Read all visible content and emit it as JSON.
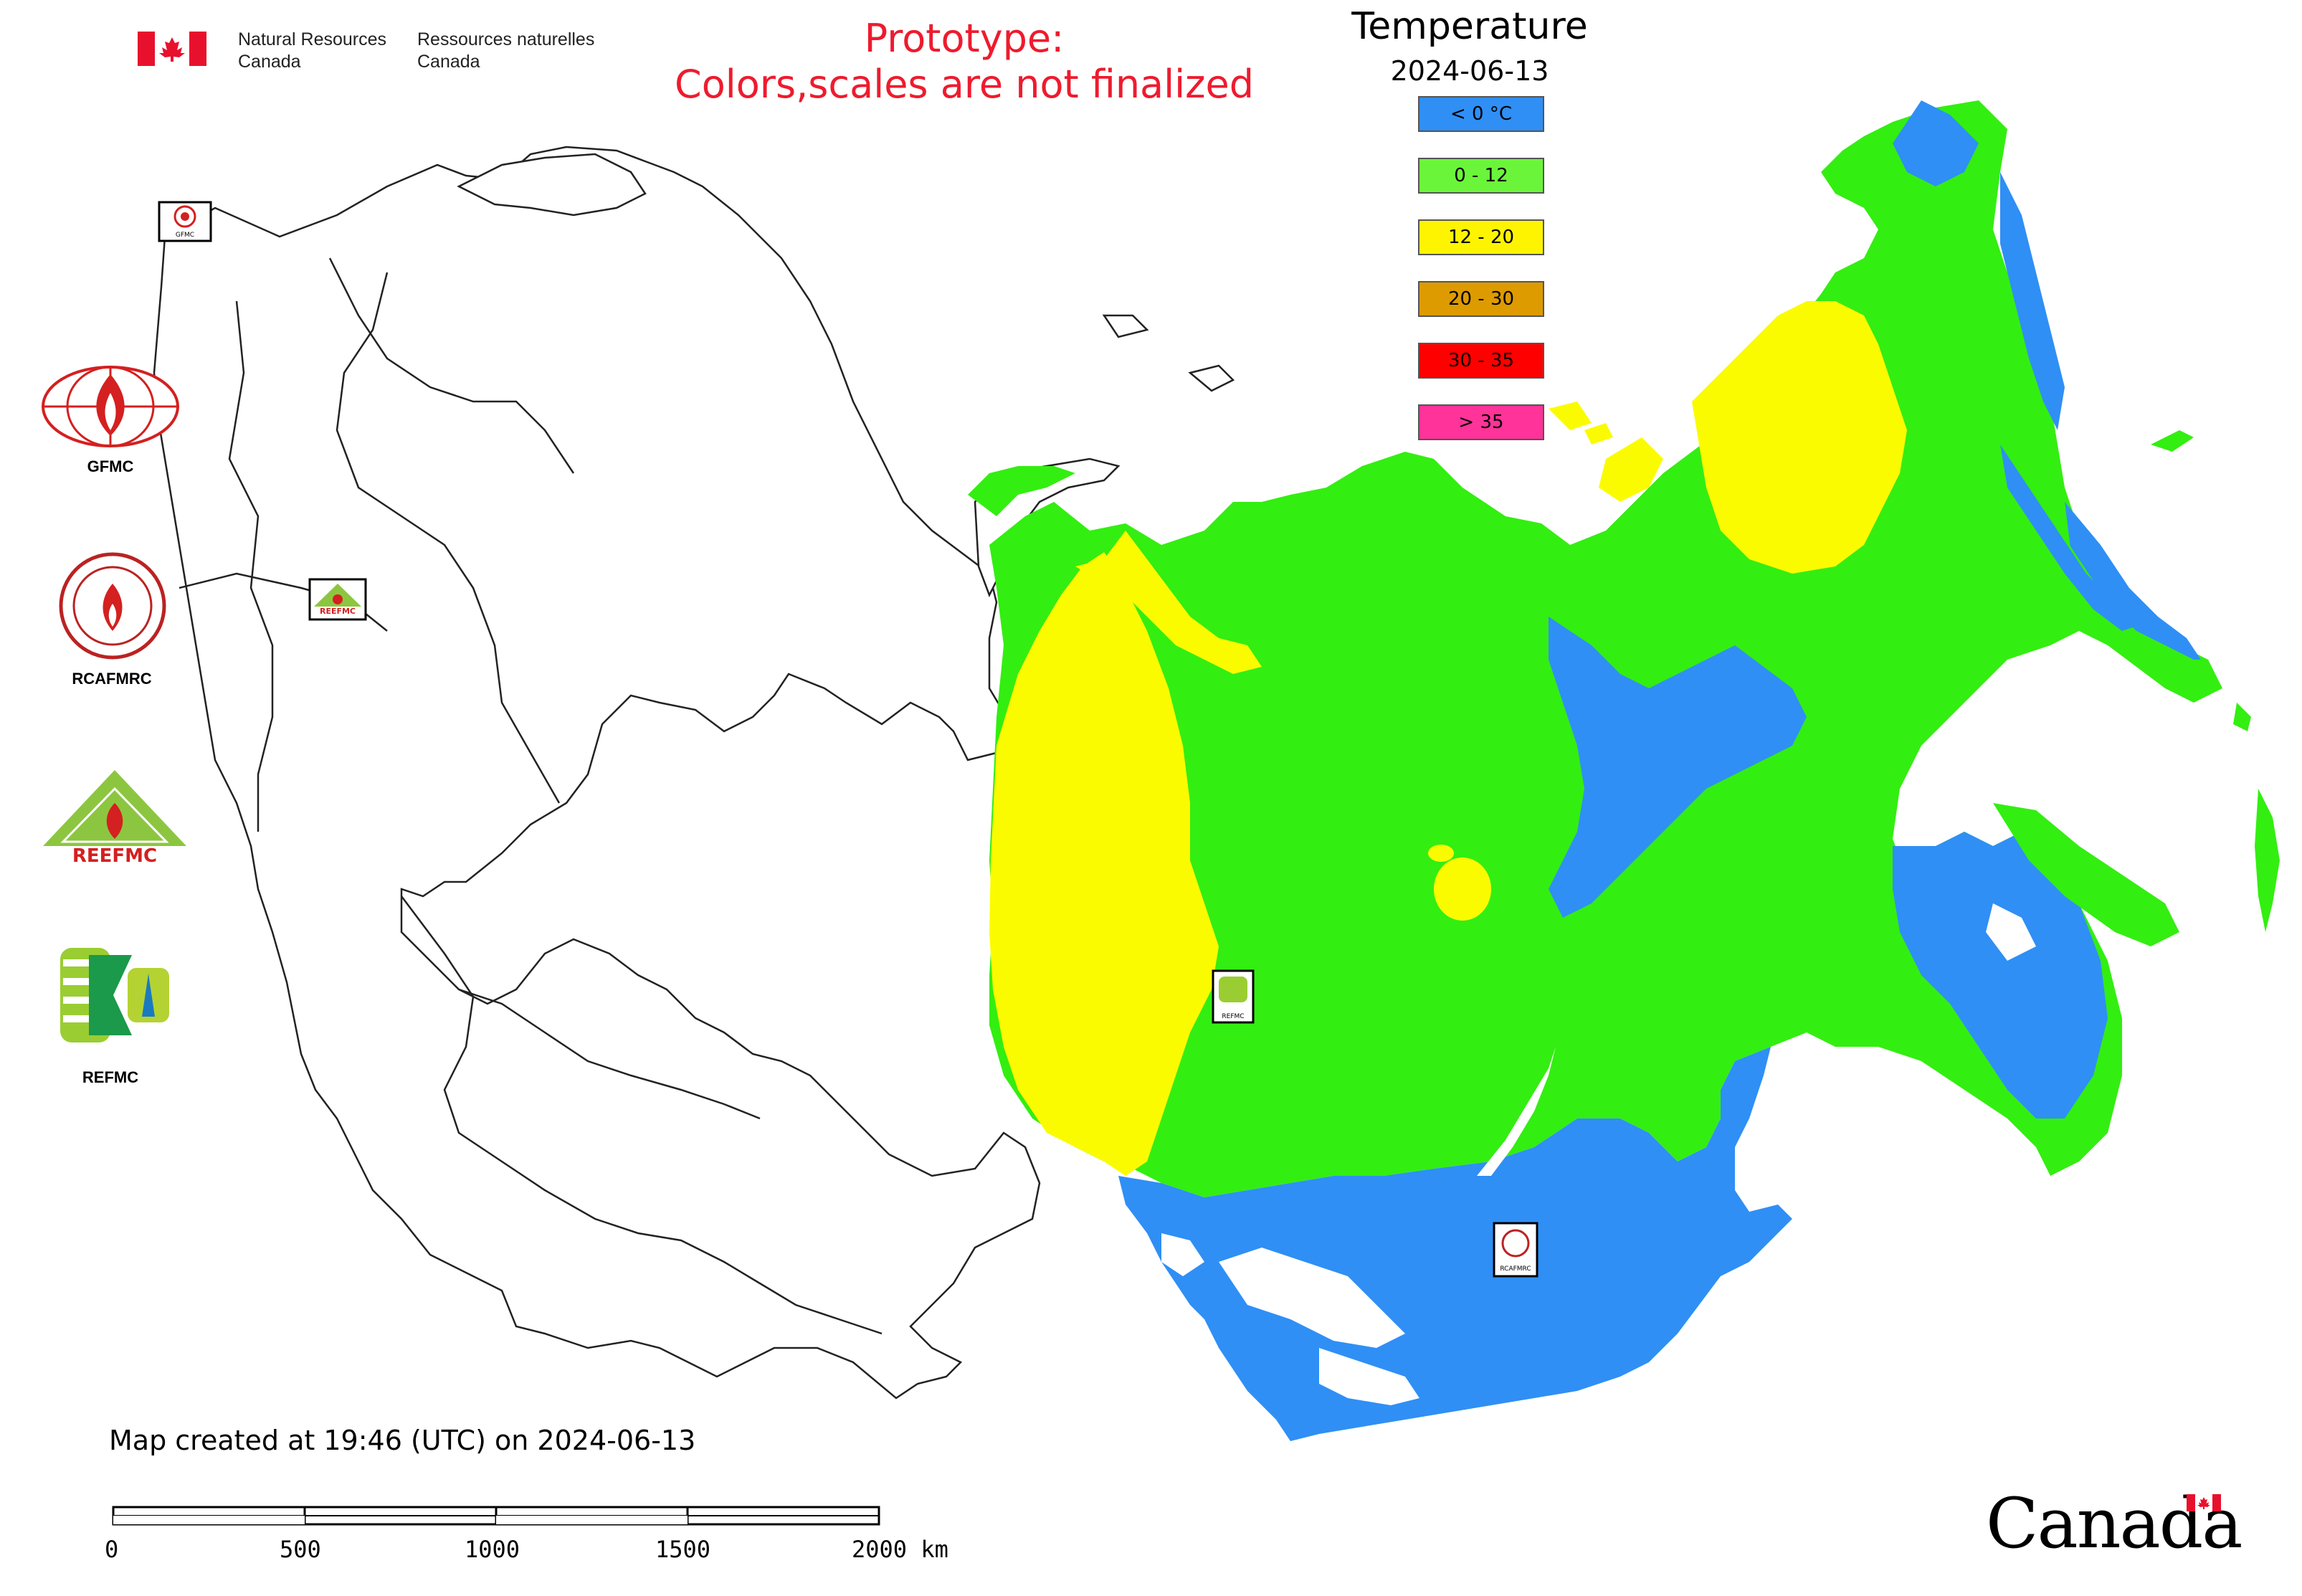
{
  "header": {
    "department_en_line1": "Natural Resources",
    "department_en_line2": "Canada",
    "department_fr_line1": "Ressources naturelles",
    "department_fr_line2": "Canada"
  },
  "notice": {
    "line1": "Prototype:",
    "line2": "Colors,scales are not finalized",
    "color": "#ee1b2e"
  },
  "legend": {
    "title": "Temperature",
    "date": "2024-06-13",
    "items": [
      {
        "label": "< 0 °C",
        "color": "#2f8ff5"
      },
      {
        "label": "0 - 12",
        "color": "#6bf53a"
      },
      {
        "label": "12 - 20",
        "color": "#fff400"
      },
      {
        "label": "20 - 30",
        "color": "#dd9b00"
      },
      {
        "label": "30 - 35",
        "color": "#ff0000"
      },
      {
        "label": "> 35",
        "color": "#ff3399"
      }
    ]
  },
  "partners": [
    {
      "name": "GFMC"
    },
    {
      "name": "RCAFMRC"
    },
    {
      "name": "REEFMC"
    },
    {
      "name": "REFMC"
    }
  ],
  "map": {
    "colors": {
      "cold": "#2f8ff5",
      "cool": "#33ee11",
      "mild": "#fbfb00",
      "outline": "#222222"
    },
    "marker_labels": [
      "GFMC",
      "REEFMC",
      "REFMC",
      "RCAFMRC"
    ]
  },
  "footer": {
    "created_text": "Map created at 19:46 (UTC) on 2024-06-13",
    "scale_ticks": [
      "0",
      "500",
      "1000",
      "1500",
      "2000 km"
    ],
    "wordmark": "Canada"
  }
}
